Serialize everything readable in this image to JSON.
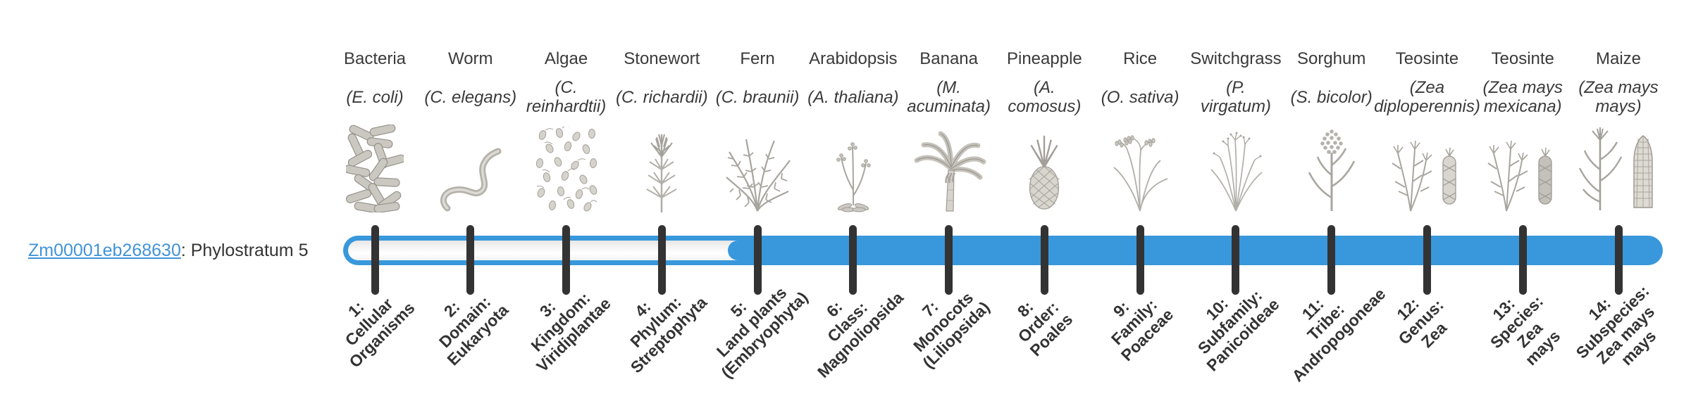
{
  "gene": {
    "id": "Zm00001eb268630",
    "annotation": ": Phylostratum 5",
    "phylostratum": 5
  },
  "timeline": {
    "bar_fill_color": "#3898DB",
    "bar_track_color": "#F5F5F5",
    "tick_color": "#333333",
    "link_color": "#4193D7",
    "illustration_color": "#B3B0A9",
    "filled_from_stratum": 5,
    "stratum_count": 14
  },
  "organisms": [
    {
      "name": "Bacteria",
      "sci": "(E. coli)",
      "icon": "bacteria"
    },
    {
      "name": "Worm",
      "sci": "(C. elegans)",
      "icon": "worm"
    },
    {
      "name": "Algae",
      "sci": "(C.\nreinhardtii)",
      "icon": "algae"
    },
    {
      "name": "Stonewort",
      "sci": "(C. richardii)",
      "icon": "stonewort"
    },
    {
      "name": "Fern",
      "sci": "(C. braunii)",
      "icon": "fern"
    },
    {
      "name": "Arabidopsis",
      "sci": "(A. thaliana)",
      "icon": "arabidopsis"
    },
    {
      "name": "Banana",
      "sci": "(M.\nacuminata)",
      "icon": "banana"
    },
    {
      "name": "Pineapple",
      "sci": "(A.\ncomosus)",
      "icon": "pineapple"
    },
    {
      "name": "Rice",
      "sci": "(O. sativa)",
      "icon": "rice"
    },
    {
      "name": "Switchgrass",
      "sci": "(P.\nvirgatum)",
      "icon": "switchgrass"
    },
    {
      "name": "Sorghum",
      "sci": "(S. bicolor)",
      "icon": "sorghum"
    },
    {
      "name": "Teosinte",
      "sci": "(Zea\ndiploperennis)",
      "icon": "teosinte-diploperennis"
    },
    {
      "name": "Teosinte",
      "sci": "(Zea mays\nmexicana)",
      "icon": "teosinte-mexicana"
    },
    {
      "name": "Maize",
      "sci": "(Zea mays\nmays)",
      "icon": "maize"
    }
  ],
  "strata": [
    {
      "label": "1:\nCellular\nOrganisms"
    },
    {
      "label": "2:\nDomain:\nEukaryota"
    },
    {
      "label": "3:\nKingdom:\nViridiplantae"
    },
    {
      "label": "4:\nPhylum:\nStreptophyta"
    },
    {
      "label": "5:\nLand plants\n(Embryophyta)"
    },
    {
      "label": "6:\nClass:\nMagnoliopsida"
    },
    {
      "label": "7:\nMonocots\n(Liliopsida)"
    },
    {
      "label": "8:\nOrder:\nPoales"
    },
    {
      "label": "9:\nFamily:\nPoaceae"
    },
    {
      "label": "10:\nSubfamily:\nPanicoideae"
    },
    {
      "label": "11:\nTribe:\nAndropogoneae"
    },
    {
      "label": "12:\nGenus:\nZea"
    },
    {
      "label": "13:\nSpecies:\nZea\nmays"
    },
    {
      "label": "14:\nSubspecies:\nZea mays\nmays"
    }
  ]
}
